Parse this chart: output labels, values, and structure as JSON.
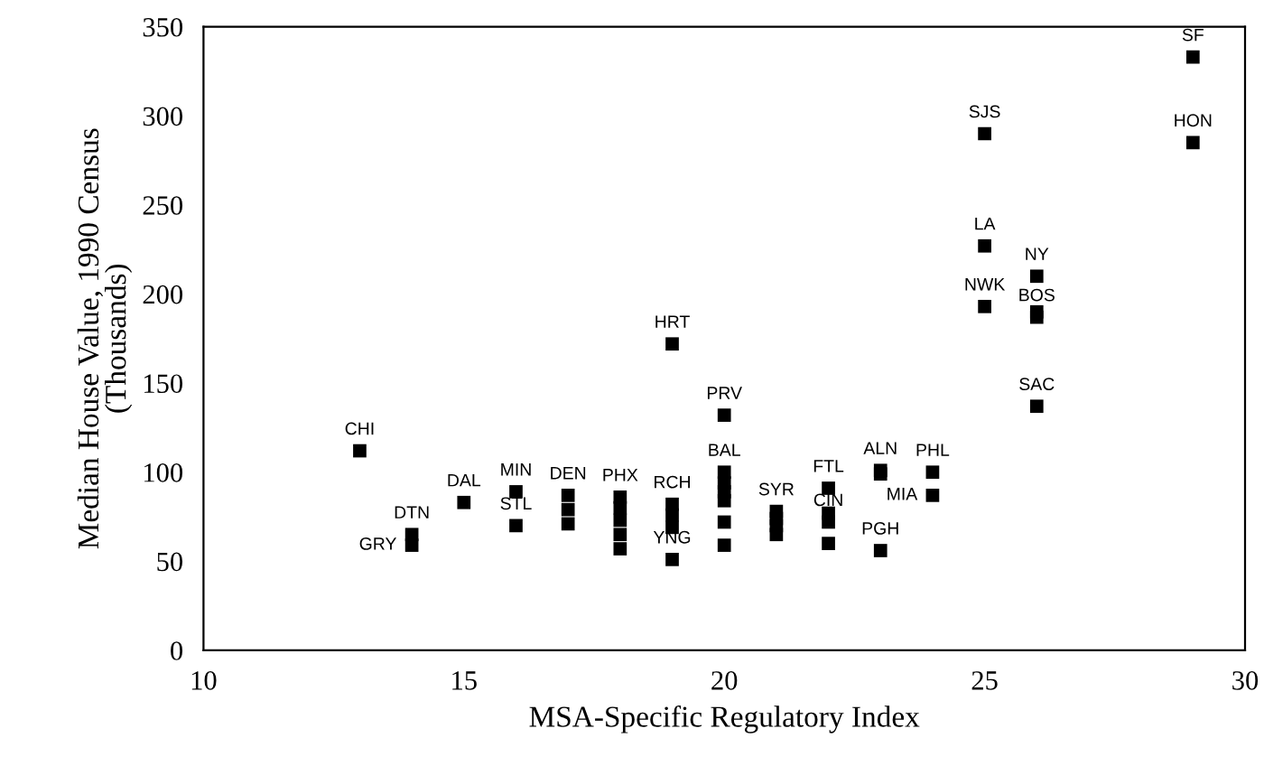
{
  "chart_data": {
    "type": "scatter",
    "xlabel": "MSA-Specific Regulatory Index",
    "ylabel": "Median House Value, 1990 Census\n(Thousands)",
    "x": [
      13,
      14,
      14,
      15,
      16,
      16,
      17,
      17,
      17,
      18,
      18,
      18,
      18,
      18,
      19,
      19,
      19,
      19,
      19,
      20,
      20,
      20,
      20,
      20,
      20,
      20,
      21,
      21,
      21,
      21,
      22,
      22,
      22,
      22,
      23,
      23,
      23,
      24,
      24,
      25,
      25,
      25,
      26,
      26,
      26,
      26,
      29,
      29
    ],
    "values": [
      112,
      65,
      59,
      83,
      89,
      70,
      87,
      79,
      71,
      86,
      80,
      73,
      65,
      57,
      82,
      76,
      69,
      172,
      51,
      132,
      100,
      94,
      89,
      84,
      72,
      59,
      78,
      74,
      70,
      65,
      91,
      77,
      72,
      60,
      101,
      99,
      56,
      100,
      87,
      290,
      227,
      193,
      210,
      190,
      187,
      137,
      333,
      285
    ],
    "color": "#000000",
    "marker": "square",
    "grid": false,
    "xlim": [
      10,
      30
    ],
    "xticks": [
      10,
      15,
      20,
      25,
      30
    ],
    "ylim": [
      0,
      350
    ],
    "yticks": [
      0,
      50,
      100,
      150,
      200,
      250,
      300,
      350
    ],
    "annotations": [
      {
        "text": "CHI",
        "x": 13,
        "y": 112
      },
      {
        "text": "DTN",
        "x": 14,
        "y": 65
      },
      {
        "text": "GRY",
        "x": 14,
        "y": 59
      },
      {
        "text": "DAL",
        "x": 15,
        "y": 83
      },
      {
        "text": "MIN",
        "x": 16,
        "y": 89
      },
      {
        "text": "STL",
        "x": 16,
        "y": 70
      },
      {
        "text": "DEN",
        "x": 17,
        "y": 87
      },
      {
        "text": "PHX",
        "x": 18,
        "y": 86
      },
      {
        "text": "RCH",
        "x": 19,
        "y": 82
      },
      {
        "text": "HRT",
        "x": 19,
        "y": 172
      },
      {
        "text": "YNG",
        "x": 19,
        "y": 51
      },
      {
        "text": "PRV",
        "x": 20,
        "y": 132
      },
      {
        "text": "BAL",
        "x": 20,
        "y": 100
      },
      {
        "text": "SYR",
        "x": 21,
        "y": 78
      },
      {
        "text": "FTL",
        "x": 22,
        "y": 91
      },
      {
        "text": "CIN",
        "x": 22,
        "y": 72
      },
      {
        "text": "ALN",
        "x": 23,
        "y": 101
      },
      {
        "text": "PGH",
        "x": 23,
        "y": 56
      },
      {
        "text": "PHL",
        "x": 24,
        "y": 100
      },
      {
        "text": "MIA",
        "x": 24,
        "y": 87
      },
      {
        "text": "SJS",
        "x": 25,
        "y": 290
      },
      {
        "text": "LA",
        "x": 25,
        "y": 227
      },
      {
        "text": "NWK",
        "x": 25,
        "y": 193
      },
      {
        "text": "NY",
        "x": 26,
        "y": 210
      },
      {
        "text": "BOS",
        "x": 26,
        "y": 187
      },
      {
        "text": "SAC",
        "x": 26,
        "y": 137
      },
      {
        "text": "SF",
        "x": 29,
        "y": 333
      },
      {
        "text": "HON",
        "x": 29,
        "y": 285
      }
    ]
  }
}
